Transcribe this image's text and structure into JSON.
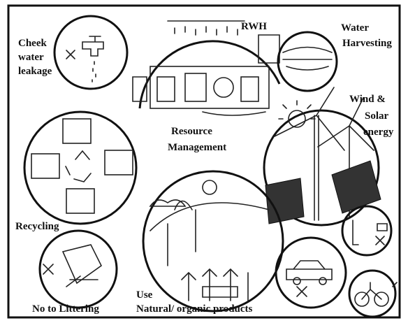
{
  "labels": [
    {
      "lines": [
        "Cheek",
        "water",
        "leakage"
      ]
    },
    {
      "lines": [
        "RWH"
      ]
    },
    {
      "lines": [
        "Water",
        "Harvesting"
      ]
    },
    {
      "lines": [
        "Wind &",
        "Solar",
        "energy"
      ]
    },
    {
      "lines": [
        "Resource",
        "Management"
      ]
    },
    {
      "lines": [
        "Recycling"
      ]
    },
    {
      "lines": [
        "No to Littering"
      ]
    },
    {
      "lines": [
        "Use",
        "Natural/ organic products"
      ]
    }
  ]
}
